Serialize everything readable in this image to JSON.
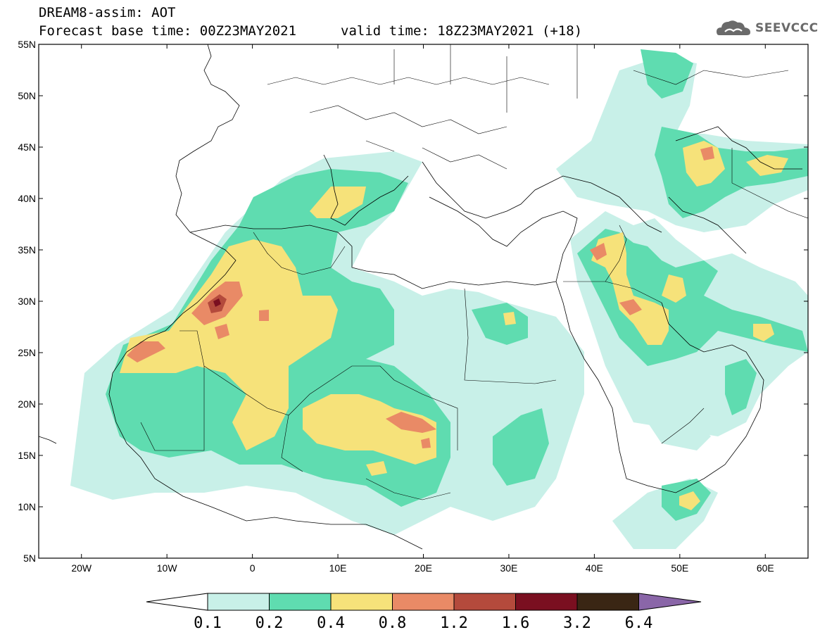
{
  "title": {
    "line1": "DREAM8-assim: AOT",
    "line2": "Forecast base time: 00Z23MAY2021",
    "line3": "valid time: 18Z23MAY2021 (+18)"
  },
  "logo": {
    "text": "SEEVCCC",
    "icon": "cloud-icon"
  },
  "map": {
    "lon_range": [
      -25,
      65
    ],
    "lat_range": [
      5,
      55
    ],
    "lat_labels": [
      "55N",
      "50N",
      "45N",
      "40N",
      "35N",
      "30N",
      "25N",
      "20N",
      "15N",
      "10N",
      "5N"
    ],
    "lon_labels": [
      "20W",
      "10W",
      "0",
      "10E",
      "20E",
      "30E",
      "40E",
      "50E",
      "60E"
    ],
    "field": "Aerosol Optical Thickness"
  },
  "colorbar": {
    "levels": [
      "0.1",
      "0.2",
      "0.4",
      "0.8",
      "1.2",
      "1.6",
      "3.2",
      "6.4"
    ],
    "colors": [
      "#ffffff",
      "#c8f0e8",
      "#5fdcb0",
      "#f6e27a",
      "#e98a66",
      "#b44a3c",
      "#7a0f20",
      "#3a2614",
      "#8a66a8"
    ]
  }
}
